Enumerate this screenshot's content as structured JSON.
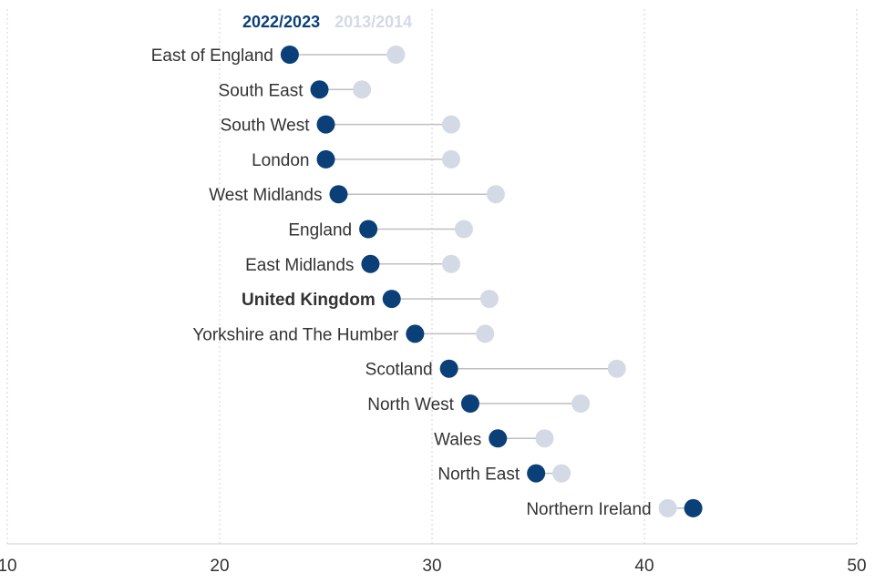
{
  "chart_data": {
    "type": "scatter",
    "subtype": "dumbbell",
    "title": "",
    "xlabel": "",
    "ylabel": "",
    "xlim": [
      10,
      50
    ],
    "xticks": [
      "10",
      "20",
      "30",
      "40",
      "50"
    ],
    "grid": "vertical dotted",
    "legend_placement": "top",
    "series": [
      {
        "name": "2022/2023",
        "color": "#0b3f78"
      },
      {
        "name": "2013/2014",
        "color": "#d4d9e6"
      }
    ],
    "categories": [
      {
        "label": "East of England",
        "v2022": 23.3,
        "v2013": 28.3,
        "bold": false
      },
      {
        "label": "South East",
        "v2022": 24.7,
        "v2013": 26.7,
        "bold": false
      },
      {
        "label": "South West",
        "v2022": 25.0,
        "v2013": 30.9,
        "bold": false
      },
      {
        "label": "London",
        "v2022": 25.0,
        "v2013": 30.9,
        "bold": false
      },
      {
        "label": "West Midlands",
        "v2022": 25.6,
        "v2013": 33.0,
        "bold": false
      },
      {
        "label": "England",
        "v2022": 27.0,
        "v2013": 31.5,
        "bold": false
      },
      {
        "label": "East Midlands",
        "v2022": 27.1,
        "v2013": 30.9,
        "bold": false
      },
      {
        "label": "United Kingdom",
        "v2022": 28.1,
        "v2013": 32.7,
        "bold": true
      },
      {
        "label": "Yorkshire and The Humber",
        "v2022": 29.2,
        "v2013": 32.5,
        "bold": false
      },
      {
        "label": "Scotland",
        "v2022": 30.8,
        "v2013": 38.7,
        "bold": false
      },
      {
        "label": "North West",
        "v2022": 31.8,
        "v2013": 37.0,
        "bold": false
      },
      {
        "label": "Wales",
        "v2022": 33.1,
        "v2013": 35.3,
        "bold": false
      },
      {
        "label": "North East",
        "v2022": 34.9,
        "v2013": 36.1,
        "bold": false
      },
      {
        "label": "Northern Ireland",
        "v2022": 42.3,
        "v2013": 41.1,
        "bold": false
      }
    ]
  }
}
